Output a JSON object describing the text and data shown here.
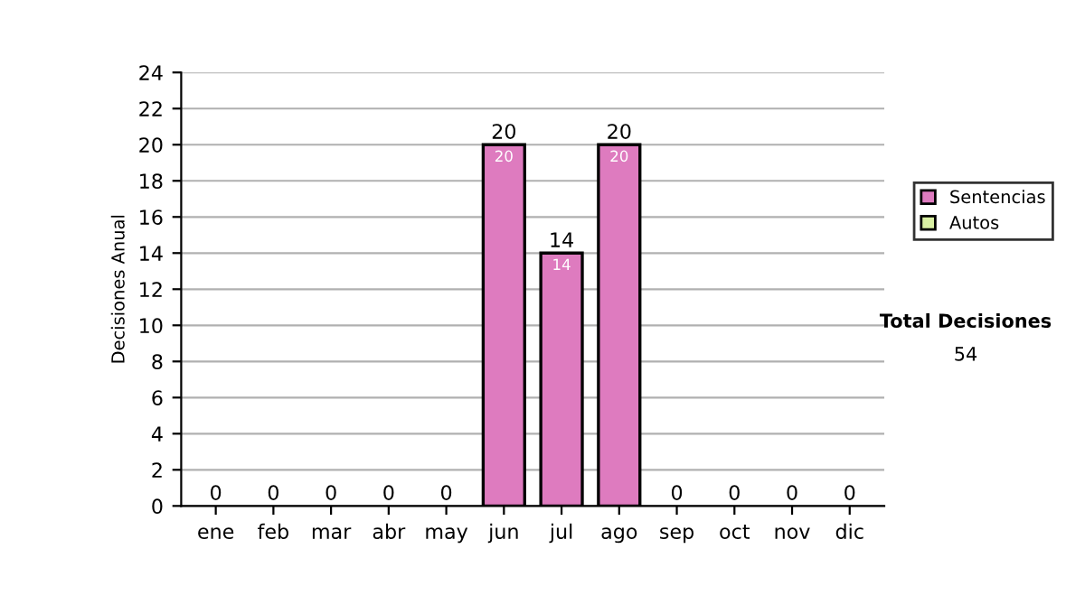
{
  "chart_data": {
    "type": "bar",
    "stacked": true,
    "ylabel": "Decisiones Anual",
    "categories": [
      "ene",
      "feb",
      "mar",
      "abr",
      "may",
      "jun",
      "jul",
      "ago",
      "sep",
      "oct",
      "nov",
      "dic"
    ],
    "series": [
      {
        "name": "Sentencias",
        "color": "#de7bbf",
        "values": [
          0,
          0,
          0,
          0,
          0,
          20,
          14,
          20,
          0,
          0,
          0,
          0
        ],
        "value_labels": [
          null,
          null,
          null,
          null,
          null,
          "20",
          "14",
          "20",
          null,
          null,
          null,
          null
        ]
      },
      {
        "name": "Autos",
        "color": "#d9f0a3",
        "values": [
          0,
          0,
          0,
          0,
          0,
          0,
          0,
          0,
          0,
          0,
          0,
          0
        ]
      }
    ],
    "totals": [
      "0",
      "0",
      "0",
      "0",
      "0",
      "20",
      "14",
      "20",
      "0",
      "0",
      "0",
      "0"
    ],
    "ylim": [
      0,
      24
    ],
    "yticks": [
      0,
      2,
      4,
      6,
      8,
      10,
      12,
      14,
      16,
      18,
      20,
      22,
      24
    ],
    "grid": "y",
    "legend": "right",
    "annotations": [
      "Total Decisiones",
      "54"
    ]
  }
}
